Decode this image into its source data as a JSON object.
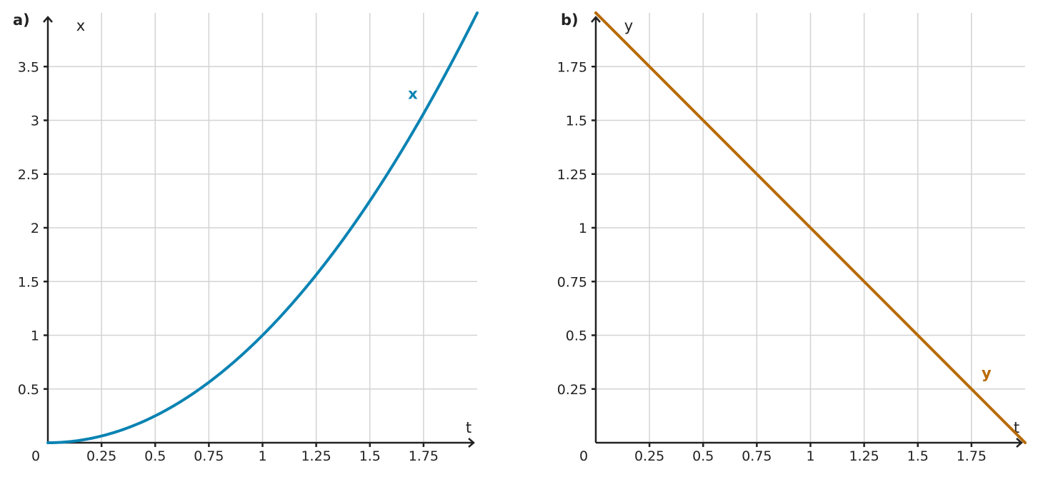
{
  "chart_data": [
    {
      "type": "line",
      "panel_label": "a)",
      "xlabel": "t",
      "ylabel": "x",
      "xlim": [
        0,
        2
      ],
      "ylim": [
        0,
        4
      ],
      "x_ticks": [
        0.25,
        0.5,
        0.75,
        1,
        1.25,
        1.5,
        1.75
      ],
      "x_tick_labels": [
        "0.25",
        "0.5",
        "0.75",
        "1",
        "1.25",
        "1.5",
        "1.75"
      ],
      "y_ticks": [
        0.5,
        1,
        1.5,
        2,
        2.5,
        3,
        3.5
      ],
      "y_tick_labels": [
        "0.5",
        "1",
        "1.5",
        "2",
        "2.5",
        "3",
        "3.5"
      ],
      "origin_label": "0",
      "grid": true,
      "series": [
        {
          "name": "x",
          "color": "#0a83b3",
          "x": [
            0,
            0.25,
            0.5,
            0.75,
            1,
            1.25,
            1.5,
            1.75,
            2
          ],
          "y": [
            0,
            0.0625,
            0.25,
            0.5625,
            1,
            1.5625,
            2.25,
            3.0625,
            4
          ]
        }
      ],
      "series_label_position": [
        1.7,
        3.2
      ]
    },
    {
      "type": "line",
      "panel_label": "b)",
      "xlabel": "t",
      "ylabel": "y",
      "xlim": [
        0,
        2
      ],
      "ylim": [
        0,
        2
      ],
      "x_ticks": [
        0.25,
        0.5,
        0.75,
        1,
        1.25,
        1.5,
        1.75
      ],
      "x_tick_labels": [
        "0.25",
        "0.5",
        "0.75",
        "1",
        "1.25",
        "1.5",
        "1.75"
      ],
      "y_ticks": [
        0.25,
        0.5,
        0.75,
        1,
        1.25,
        1.5,
        1.75
      ],
      "y_tick_labels": [
        "0.25",
        "0.5",
        "0.75",
        "1",
        "1.25",
        "1.5",
        "1.75"
      ],
      "origin_label": "0",
      "grid": true,
      "series": [
        {
          "name": "y",
          "color": "#b86a00",
          "x": [
            0,
            0.25,
            0.5,
            0.75,
            1,
            1.25,
            1.5,
            1.75,
            2
          ],
          "y": [
            2,
            1.75,
            1.5,
            1.25,
            1,
            0.75,
            0.5,
            0.25,
            0
          ]
        }
      ],
      "series_label_position": [
        1.82,
        0.3
      ]
    }
  ]
}
